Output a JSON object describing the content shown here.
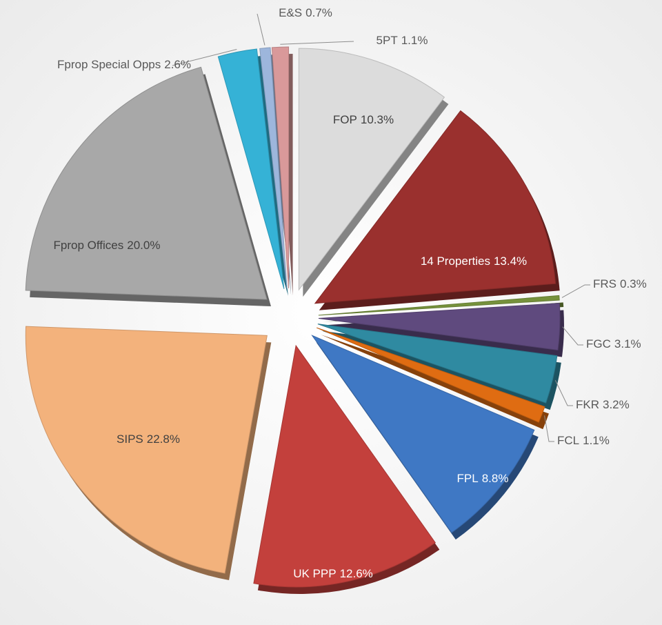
{
  "chart_data": {
    "type": "pie",
    "categories": [
      "FOP",
      "14 Properties",
      "FRS",
      "FGC",
      "FKR",
      "FCL",
      "FPL",
      "UK PPP",
      "SIPS",
      "Fprop Offices",
      "Fprop Special Opps",
      "E&S",
      "5PT"
    ],
    "values": [
      10.3,
      13.4,
      0.3,
      3.1,
      3.2,
      1.1,
      8.8,
      12.6,
      22.8,
      20.0,
      2.6,
      0.7,
      1.1
    ],
    "value_labels": [
      "10.3%",
      "13.4%",
      "0.3%",
      "3.1%",
      "3.2%",
      "1.1%",
      "8.8%",
      "12.6%",
      "22.8%",
      "20.0%",
      "2.6%",
      "0.7%",
      "1.1%"
    ],
    "colors": [
      "#dcdcdc",
      "#9a302e",
      "#76923c",
      "#5f4a7e",
      "#2f8aa1",
      "#df6c12",
      "#3f78c4",
      "#c3403c",
      "#f3b27c",
      "#a8a8a8",
      "#35b2d6",
      "#9db6dc",
      "#d9999a"
    ]
  }
}
